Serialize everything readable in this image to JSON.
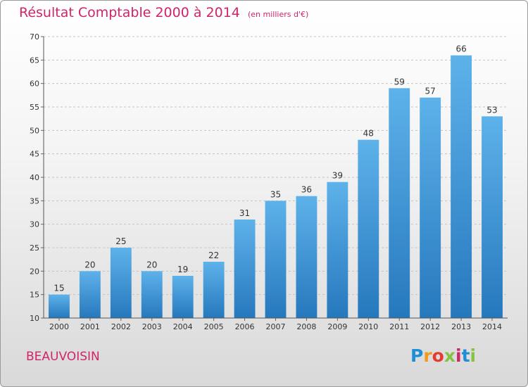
{
  "header": {
    "title": "Résultat Comptable 2000 à 2014",
    "subtitle": "(en milliers d'€)"
  },
  "footer": {
    "commune": "BEAUVOISIN",
    "logo_letters": [
      "P",
      "r",
      "o",
      "x",
      "i",
      "t",
      "i"
    ],
    "logo_colors": [
      "#1e8fd6",
      "#f29a1a",
      "#e63c2f",
      "#86c341",
      "#d0246a",
      "#1e8fd6",
      "#86c341"
    ]
  },
  "chart_data": {
    "type": "bar",
    "categories": [
      "2000",
      "2001",
      "2002",
      "2003",
      "2004",
      "2005",
      "2006",
      "2007",
      "2008",
      "2009",
      "2010",
      "2011",
      "2012",
      "2013",
      "2014"
    ],
    "values": [
      15,
      20,
      25,
      20,
      19,
      22,
      31,
      35,
      36,
      39,
      48,
      59,
      57,
      66,
      53
    ],
    "ylim": [
      10,
      70
    ],
    "yticks": [
      10,
      15,
      20,
      25,
      30,
      35,
      40,
      45,
      50,
      55,
      60,
      65,
      70
    ],
    "grid": true,
    "bar_color": "#3a8fd3"
  }
}
